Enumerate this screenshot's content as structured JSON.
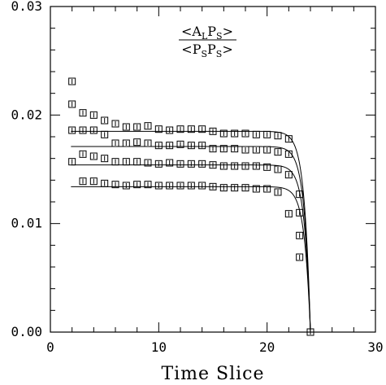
{
  "chart_data": {
    "type": "scatter",
    "title": "",
    "xlabel": "Time Slice",
    "ylabel": "",
    "xlim": [
      0,
      30
    ],
    "ylim": [
      0.0,
      0.03
    ],
    "x_ticks": [
      0,
      10,
      20,
      30
    ],
    "x_tick_labels": [
      "0",
      "10",
      "20",
      "30"
    ],
    "y_ticks": [
      0.0,
      0.01,
      0.02,
      0.03
    ],
    "y_tick_labels": [
      "0.00",
      "0.01",
      "0.02",
      "0.03"
    ],
    "grid": false,
    "annotation": {
      "numerator": {
        "open": "<",
        "A": "A",
        "A_sub": "L",
        "P": "P",
        "P_sub": "S",
        "close": ">"
      },
      "denominator": {
        "open": "<",
        "P1": "P",
        "P1_sub": "S",
        "P2": "P",
        "P2_sub": "S",
        "close": ">"
      }
    },
    "series": [
      {
        "x": [
          2,
          3,
          4,
          5,
          6,
          7,
          8,
          9,
          10,
          11,
          12,
          13,
          14,
          15,
          16,
          17,
          18,
          19,
          20,
          21,
          22,
          23,
          24
        ],
        "y": [
          0.0231,
          0.0202,
          0.02,
          0.0195,
          0.0192,
          0.0189,
          0.0189,
          0.019,
          0.0187,
          0.0186,
          0.0187,
          0.0187,
          0.0187,
          0.0185,
          0.0183,
          0.0183,
          0.0183,
          0.0182,
          0.0182,
          0.0181,
          0.0178,
          0.0127,
          0.0
        ],
        "fit": {
          "plateau": 0.0185,
          "x_start": 1.9,
          "x_end": 24
        }
      },
      {
        "x": [
          2,
          3,
          4,
          5,
          6,
          7,
          8,
          9,
          10,
          11,
          12,
          13,
          14,
          15,
          16,
          17,
          18,
          19,
          20,
          21,
          22,
          23,
          24
        ],
        "y": [
          0.021,
          0.0186,
          0.0186,
          0.0182,
          0.0174,
          0.0174,
          0.0175,
          0.0174,
          0.0172,
          0.0172,
          0.0173,
          0.0172,
          0.0172,
          0.0169,
          0.0169,
          0.0169,
          0.0168,
          0.0168,
          0.0168,
          0.0166,
          0.0164,
          0.011,
          0.0
        ],
        "fit": {
          "plateau": 0.0171,
          "x_start": 1.9,
          "x_end": 24
        }
      },
      {
        "x": [
          2,
          3,
          4,
          5,
          6,
          7,
          8,
          9,
          10,
          11,
          12,
          13,
          14,
          15,
          16,
          17,
          18,
          19,
          20,
          21,
          22,
          23,
          24
        ],
        "y": [
          0.0186,
          0.0164,
          0.0162,
          0.016,
          0.0157,
          0.0157,
          0.0157,
          0.0156,
          0.0155,
          0.0156,
          0.0155,
          0.0155,
          0.0155,
          0.0154,
          0.0153,
          0.0153,
          0.0153,
          0.0153,
          0.0152,
          0.015,
          0.0145,
          0.0089,
          0.0
        ],
        "fit": {
          "plateau": 0.0154,
          "x_start": 1.9,
          "x_end": 24
        }
      },
      {
        "x": [
          2,
          3,
          4,
          5,
          6,
          7,
          8,
          9,
          10,
          11,
          12,
          13,
          14,
          15,
          16,
          17,
          18,
          19,
          20,
          21,
          22,
          23,
          24
        ],
        "y": [
          0.0157,
          0.0139,
          0.0139,
          0.0137,
          0.0136,
          0.0135,
          0.0136,
          0.0136,
          0.0135,
          0.0135,
          0.0135,
          0.0135,
          0.0135,
          0.0134,
          0.0133,
          0.0133,
          0.0133,
          0.0132,
          0.0132,
          0.0129,
          0.0109,
          0.0069,
          0.0
        ],
        "fit": {
          "plateau": 0.0134,
          "x_start": 1.9,
          "x_end": 24
        }
      }
    ]
  }
}
